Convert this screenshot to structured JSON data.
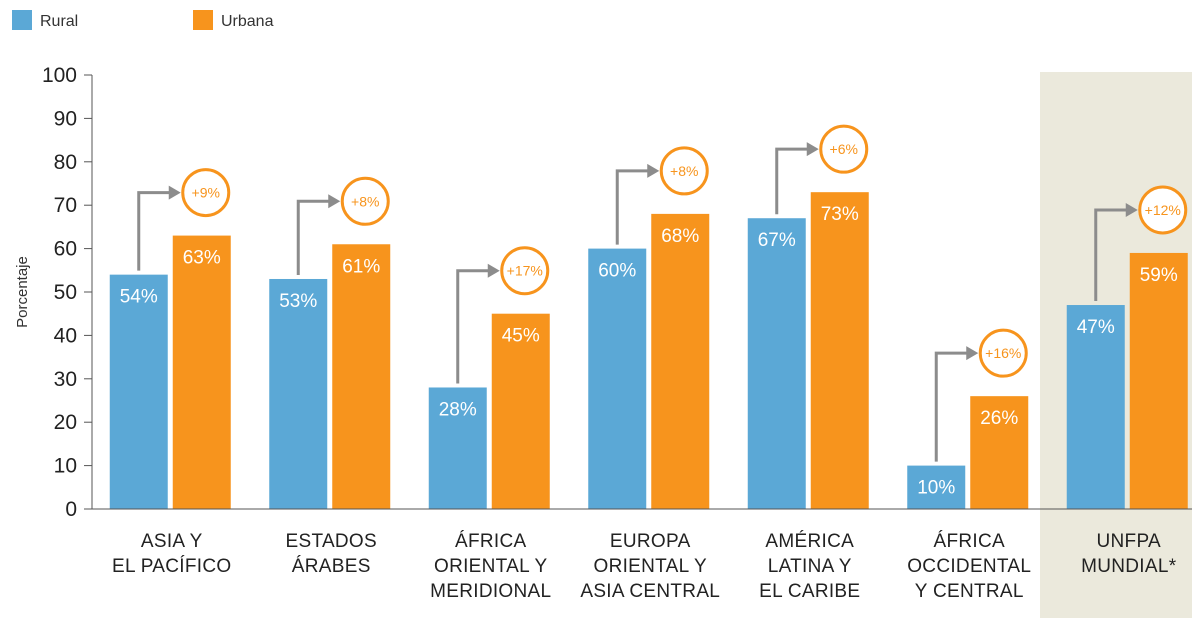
{
  "chart_data": {
    "type": "bar",
    "ylabel": "Porcentaje",
    "ylim": [
      0,
      100
    ],
    "yticks": [
      0,
      10,
      20,
      30,
      40,
      50,
      60,
      70,
      80,
      90,
      100
    ],
    "categories": [
      [
        "ASIA Y",
        "EL PACÍFICO"
      ],
      [
        "ESTADOS",
        "ÁRABES"
      ],
      [
        "ÁFRICA",
        "ORIENTAL Y",
        "MERIDIONAL"
      ],
      [
        "EUROPA",
        "ORIENTAL Y",
        "ASIA CENTRAL"
      ],
      [
        "AMÉRICA",
        "LATINA Y",
        "EL CARIBE"
      ],
      [
        "ÁFRICA",
        "OCCIDENTAL",
        "Y CENTRAL"
      ],
      [
        "UNFPA",
        "MUNDIAL*"
      ]
    ],
    "series": [
      {
        "name": "Rural",
        "color": "#5ba8d6",
        "values": [
          54,
          53,
          28,
          60,
          67,
          10,
          47
        ],
        "labels": [
          "54%",
          "53%",
          "28%",
          "60%",
          "67%",
          "10%",
          "47%"
        ]
      },
      {
        "name": "Urbana",
        "color": "#f7941d",
        "values": [
          63,
          61,
          45,
          68,
          73,
          26,
          59
        ],
        "labels": [
          "63%",
          "61%",
          "45%",
          "68%",
          "73%",
          "26%",
          "59%"
        ]
      }
    ],
    "differences": [
      "+9%",
      "+8%",
      "+17%",
      "+8%",
      "+6%",
      "+16%",
      "+12%"
    ],
    "highlight_category_index": 6,
    "highlight_color": "#ebe9dc",
    "arrow_color": "#8c8c8c",
    "legend_position": "top-left",
    "grid": false
  }
}
